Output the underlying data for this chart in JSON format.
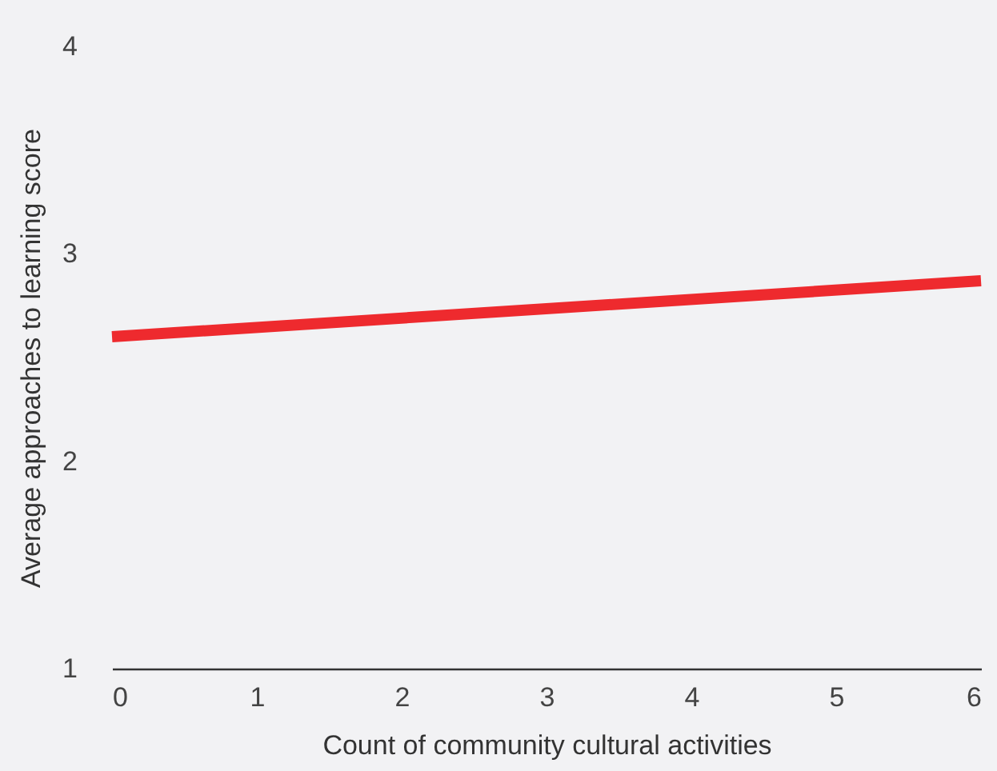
{
  "chart_data": {
    "type": "line",
    "xlabel": "Count of community cultural activities",
    "ylabel": "Average approaches to learning score",
    "x": [
      0,
      6
    ],
    "series": [
      {
        "color": "#ee2a2e",
        "values": [
          2.6,
          2.87
        ]
      }
    ],
    "xlim": [
      0,
      6
    ],
    "xticks": [
      0,
      1,
      2,
      3,
      4,
      5,
      6
    ],
    "ylim": [
      1,
      4
    ],
    "yticks": [
      1,
      2,
      3,
      4
    ],
    "grid": false,
    "marker": "none",
    "line_style": "solid"
  }
}
